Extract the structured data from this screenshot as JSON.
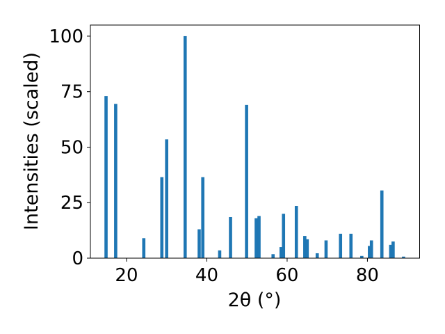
{
  "chart_data": {
    "type": "bar",
    "title": "",
    "xlabel": "2θ (°)",
    "ylabel": "Intensities (scaled)",
    "xlim": [
      11,
      93
    ],
    "ylim": [
      0,
      105
    ],
    "x_ticks": [
      20,
      40,
      60,
      80
    ],
    "y_ticks": [
      0,
      25,
      50,
      75,
      100
    ],
    "grid": false,
    "bar_color": "#1f77b4",
    "series": [
      {
        "x": [
          14.9,
          17.3,
          24.3,
          28.8,
          30.0,
          34.6,
          38.1,
          39.0,
          43.2,
          45.9,
          49.9,
          52.3,
          53.0,
          56.5,
          58.5,
          59.1,
          62.3,
          64.4,
          65.0,
          67.5,
          69.7,
          73.3,
          75.9,
          78.6,
          80.5,
          81.0,
          83.6,
          85.8,
          86.4,
          89.0
        ],
        "y": [
          73,
          69.5,
          9,
          36.5,
          53.5,
          100,
          13,
          36.5,
          3.5,
          18.5,
          69,
          18,
          19,
          1.8,
          5,
          20,
          23.5,
          10,
          8.5,
          2.2,
          8,
          11,
          11,
          1,
          5.5,
          8,
          30.5,
          6,
          7.5,
          0.7
        ]
      }
    ]
  }
}
